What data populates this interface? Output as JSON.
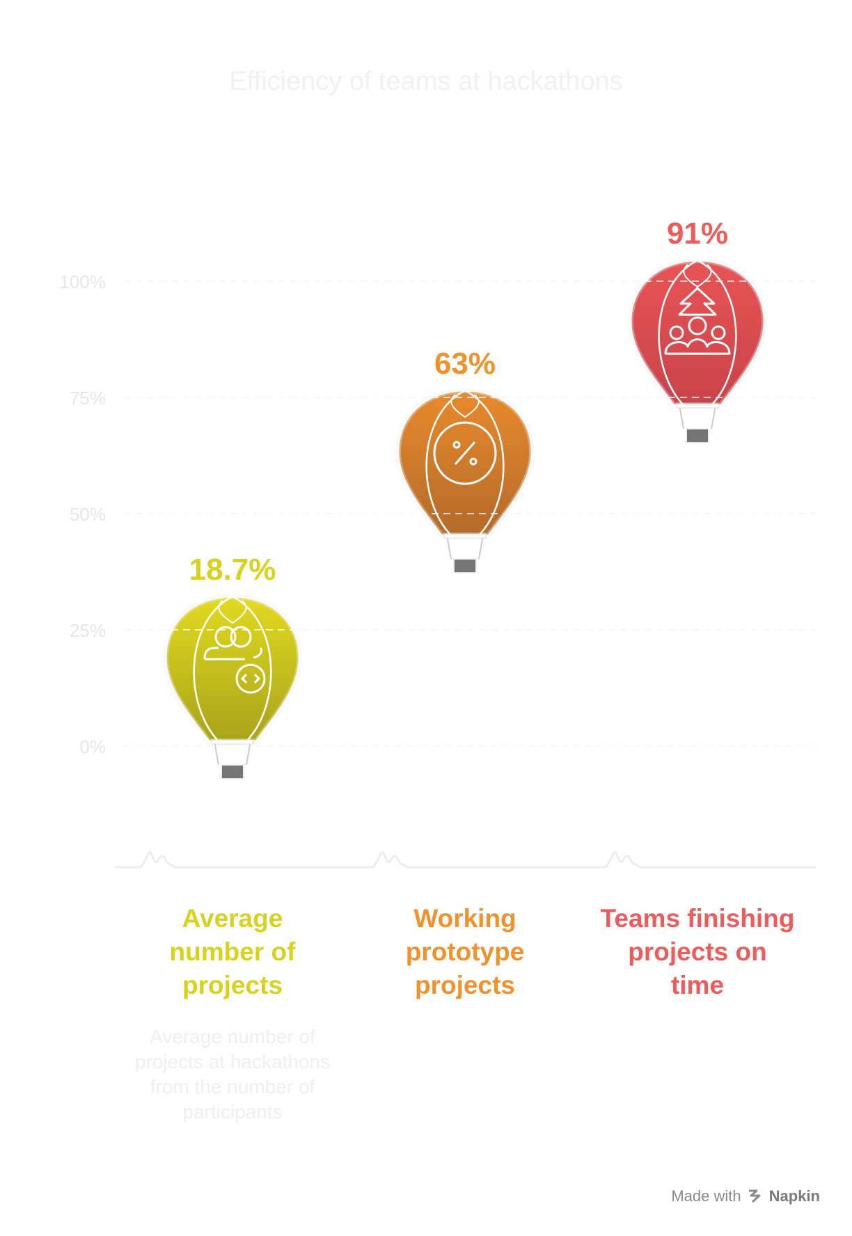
{
  "footer": {
    "made_with": "Made with",
    "brand": "Napkin"
  },
  "chart_data": {
    "type": "bar",
    "title": "Efficiency of teams at hackathons",
    "ylim": [
      0,
      100
    ],
    "y_ticks": [
      "0%",
      "25%",
      "50%",
      "75%",
      "100%"
    ],
    "y_tick_values": [
      0,
      25,
      50,
      75,
      100
    ],
    "grid": true,
    "categories": [
      "Average number of projects",
      "Working prototype projects",
      "Teams finishing projects on time"
    ],
    "values": [
      18.7,
      63,
      91
    ],
    "value_labels": [
      "18.7%",
      "63%",
      "91%"
    ],
    "descriptions": [
      "Average number of projects at hackathons from the number of participants",
      "",
      ""
    ],
    "colors": [
      "#d8d21e",
      "#f0922c",
      "#ee5b5b"
    ],
    "icons": [
      "users-code-icon",
      "percent-icon",
      "team-growth-icon"
    ]
  }
}
